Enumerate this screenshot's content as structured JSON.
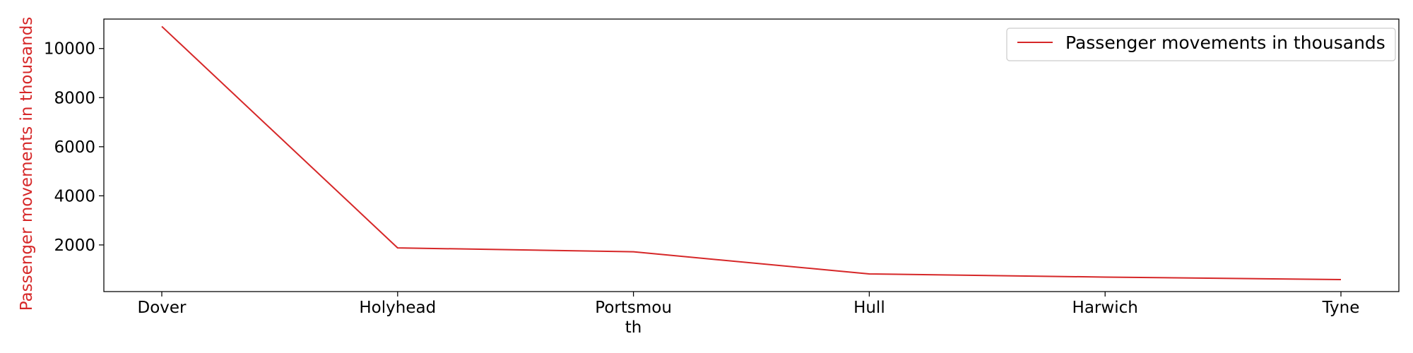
{
  "chart_data": {
    "type": "line",
    "categories": [
      "Dover",
      "Holyhead",
      "Portsmouth",
      "Hull",
      "Harwich",
      "Tyne"
    ],
    "category_display_lines": [
      [
        "Dover"
      ],
      [
        "Holyhead"
      ],
      [
        "Portsmou",
        "th"
      ],
      [
        "Hull"
      ],
      [
        "Harwich"
      ],
      [
        "Tyne"
      ]
    ],
    "series": [
      {
        "name": "Passenger movements in thousands",
        "values": [
          10900,
          1880,
          1720,
          820,
          690,
          590
        ],
        "color": "#d62728"
      }
    ],
    "ylabel": "Passenger movements in thousands",
    "ylabel_color": "#d62728",
    "xlabel": "",
    "ylim": [
      100,
      11200
    ],
    "yticks": [
      2000,
      4000,
      6000,
      8000,
      10000
    ],
    "grid": false,
    "legend_position": "top-right"
  }
}
